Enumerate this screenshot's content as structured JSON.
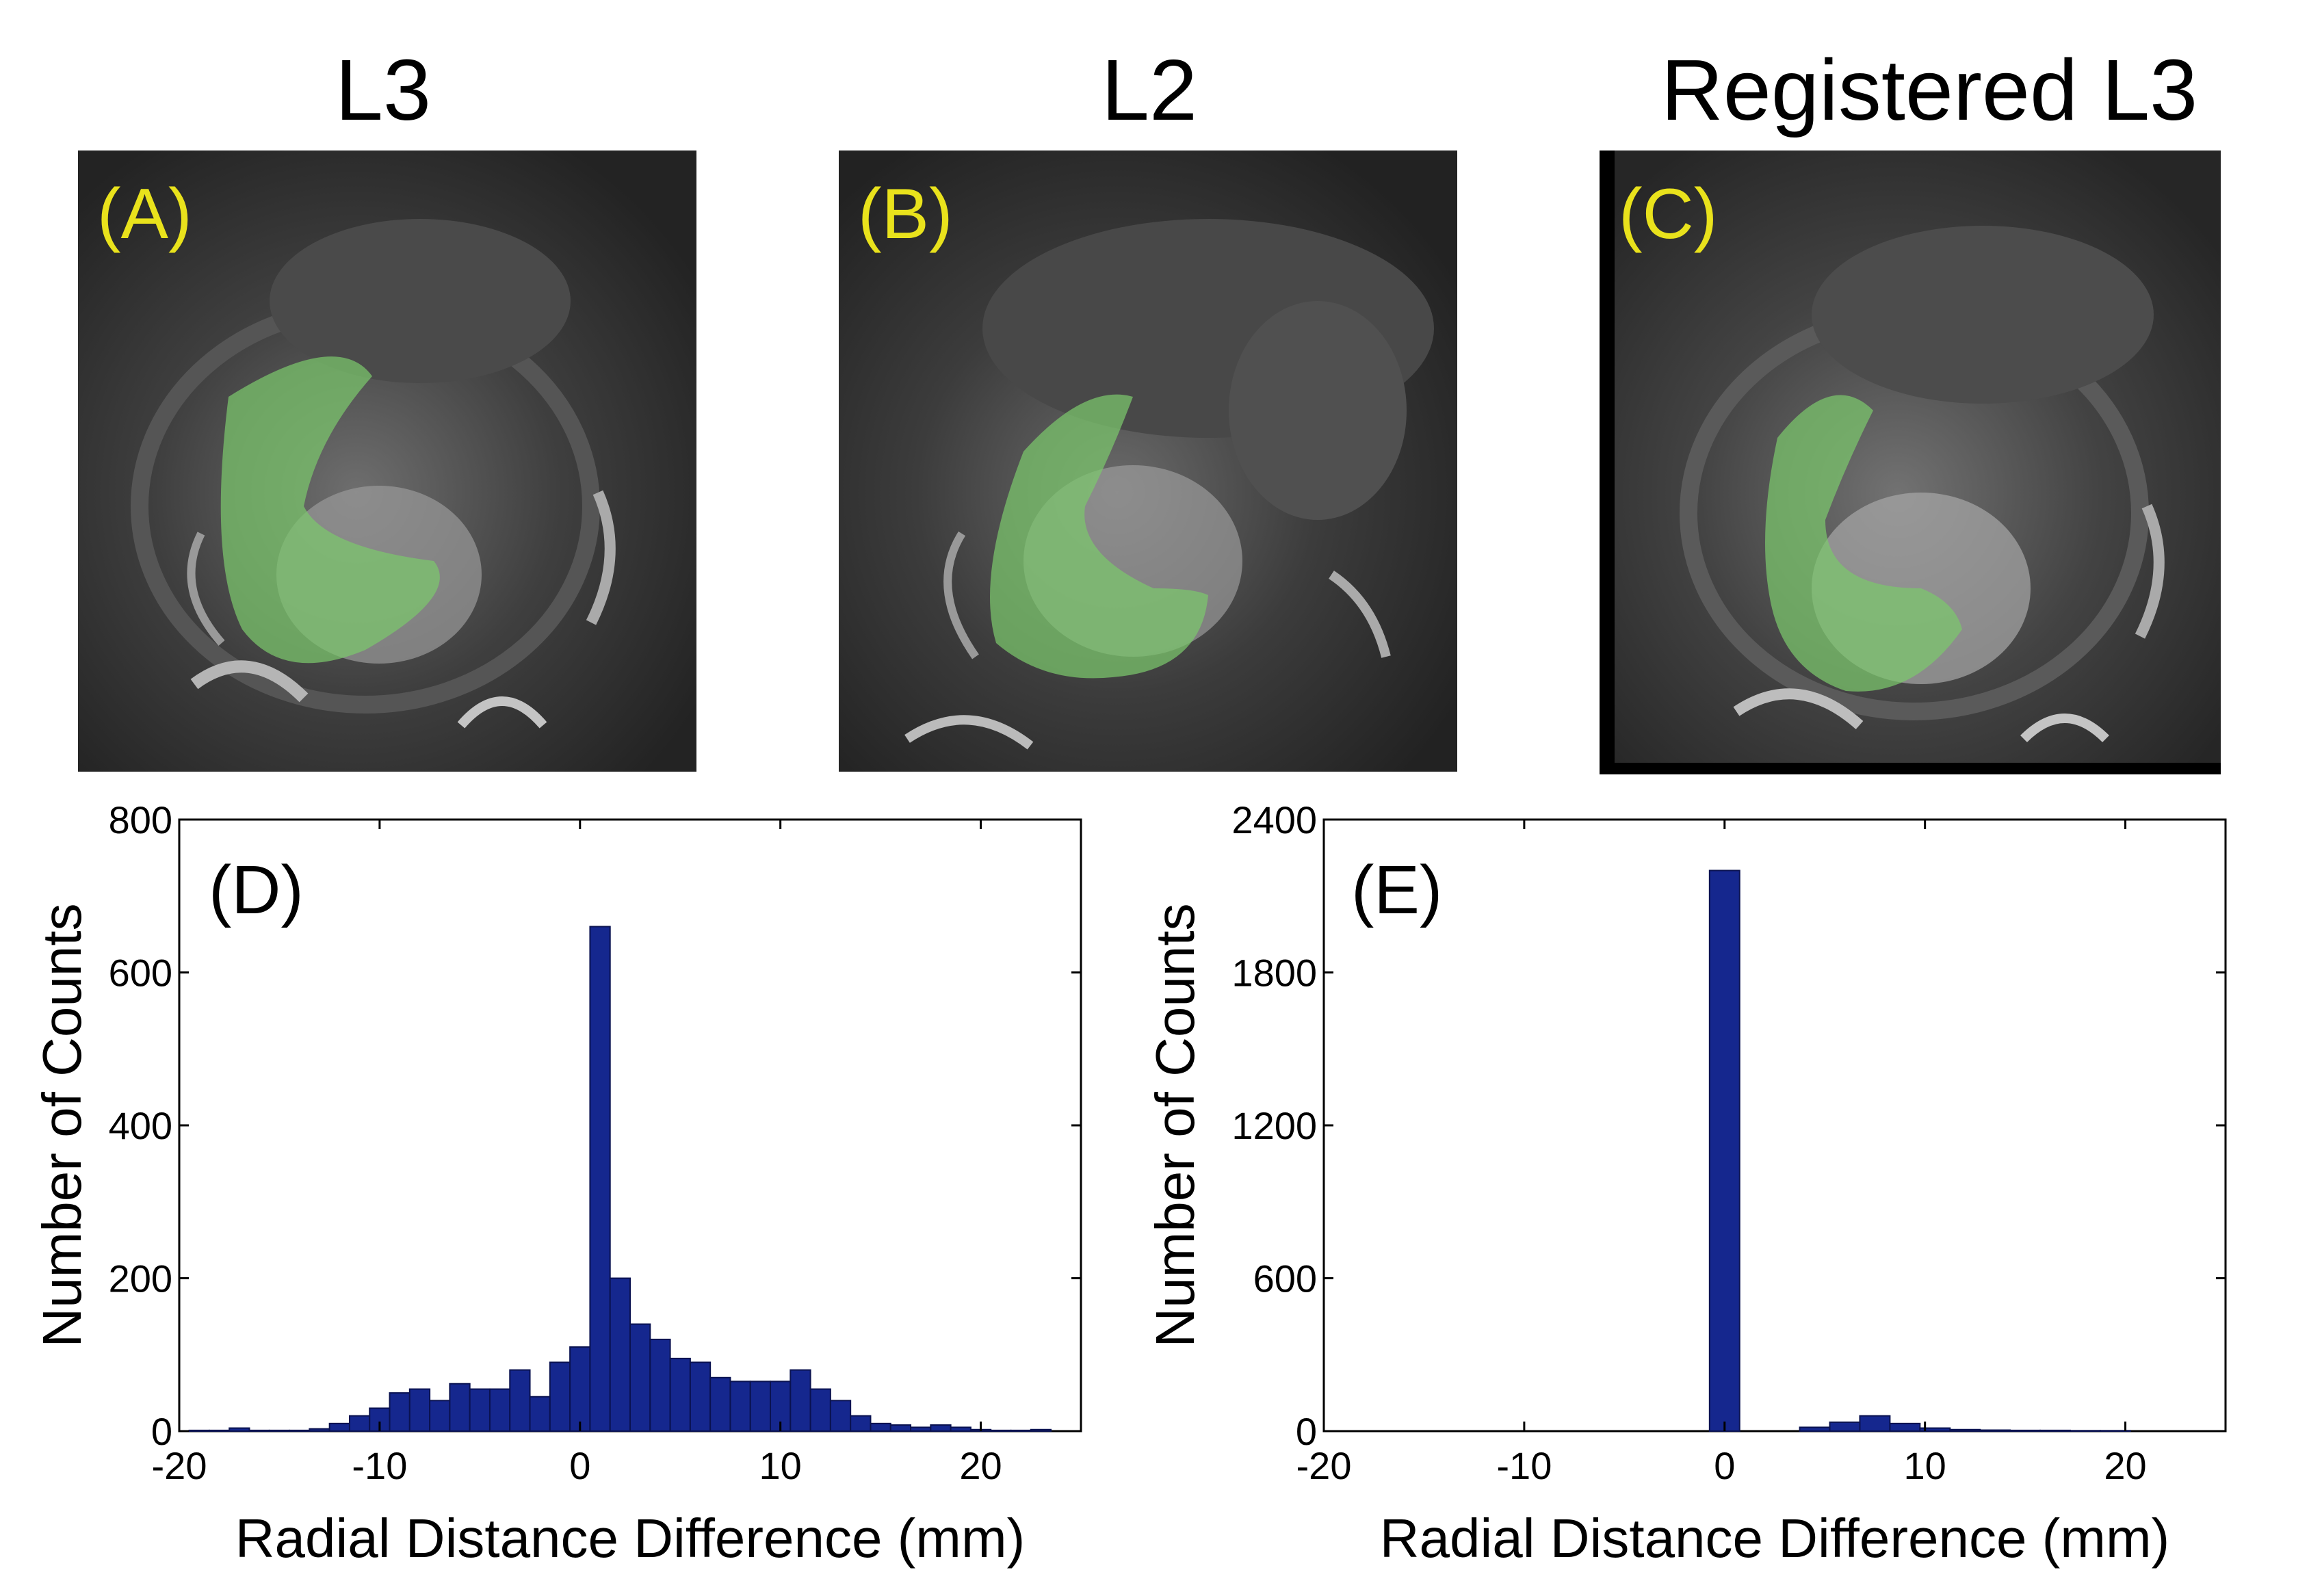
{
  "panels": [
    {
      "title": "L3",
      "label": "(A)"
    },
    {
      "title": "L2",
      "label": "(B)"
    },
    {
      "title": "Registered L3",
      "label": "(C)"
    }
  ],
  "colors": {
    "bar": "#15278e",
    "bar_edge": "#0a1250",
    "overlay": "#7bc86c",
    "label": "#e9e21c"
  },
  "chart_data": [
    {
      "type": "bar",
      "panel_label": "(D)",
      "title": "",
      "xlabel": "Radial Distance Difference (mm)",
      "ylabel": "Number of Counts",
      "xlim": [
        -20,
        25
      ],
      "ylim": [
        0,
        800
      ],
      "xticks": [
        -20,
        -10,
        0,
        10,
        20
      ],
      "yticks": [
        0,
        200,
        400,
        600,
        800
      ],
      "bin_width": 1,
      "bin_centers": [
        -19,
        -18,
        -17,
        -16,
        -15,
        -14,
        -13,
        -12,
        -11,
        -10,
        -9,
        -8,
        -7,
        -6,
        -5,
        -4,
        -3,
        -2,
        -1,
        0,
        1,
        2,
        3,
        4,
        5,
        6,
        7,
        8,
        9,
        10,
        11,
        12,
        13,
        14,
        15,
        16,
        17,
        18,
        19,
        20,
        21,
        22,
        23
      ],
      "values": [
        1,
        1,
        4,
        1,
        1,
        1,
        3,
        10,
        20,
        30,
        50,
        55,
        40,
        62,
        55,
        55,
        80,
        45,
        90,
        110,
        660,
        200,
        140,
        120,
        95,
        90,
        70,
        65,
        65,
        65,
        80,
        55,
        40,
        20,
        10,
        8,
        5,
        8,
        5,
        2,
        1,
        1,
        2
      ]
    },
    {
      "type": "bar",
      "panel_label": "(E)",
      "title": "",
      "xlabel": "Radial Distance Difference (mm)",
      "ylabel": "Number of Counts",
      "xlim": [
        -20,
        25
      ],
      "ylim": [
        0,
        2400
      ],
      "xticks": [
        -20,
        -10,
        0,
        10,
        20
      ],
      "yticks": [
        0,
        600,
        1200,
        1800,
        2400
      ],
      "bin_width": 1.5,
      "bin_centers": [
        0,
        4.5,
        6,
        7.5,
        9,
        10.5,
        12,
        13.5,
        15,
        16.5,
        18,
        19.5
      ],
      "values": [
        2200,
        15,
        35,
        60,
        30,
        12,
        6,
        4,
        3,
        3,
        2,
        2
      ]
    }
  ]
}
